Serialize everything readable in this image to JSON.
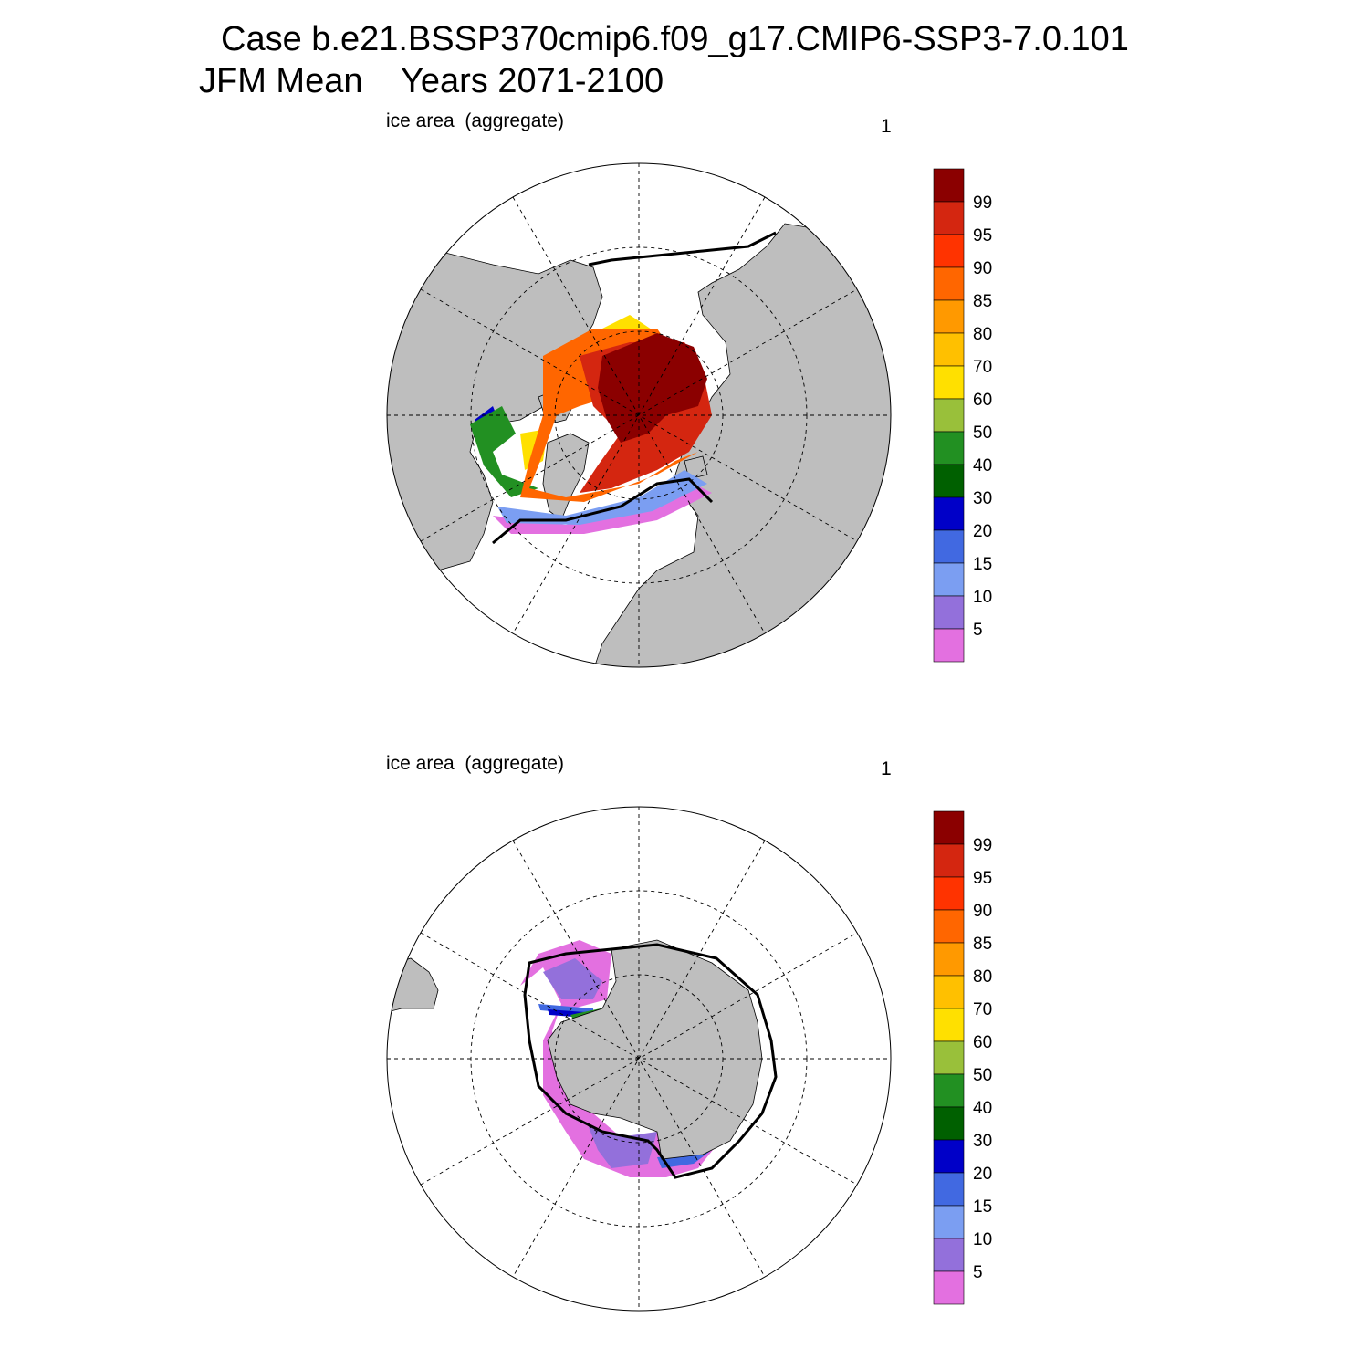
{
  "title": {
    "line1": "Case b.e21.BSSP370cmip6.f09_g17.CMIP6-SSP3-7.0.101",
    "line2": "JFM Mean    Years 2071-2100"
  },
  "panels": [
    {
      "id": "north",
      "left_label": "ice area  (aggregate)",
      "right_label": "1"
    },
    {
      "id": "south",
      "left_label": "ice area  (aggregate)",
      "right_label": "1"
    }
  ],
  "colorbar": {
    "labels": [
      "99",
      "95",
      "90",
      "85",
      "80",
      "70",
      "60",
      "50",
      "40",
      "30",
      "20",
      "15",
      "10",
      "5"
    ],
    "colors": [
      "#8b0000",
      "#d42610",
      "#ff3300",
      "#ff6600",
      "#ff9900",
      "#ffc000",
      "#ffe000",
      "#99c03a",
      "#229022",
      "#006000",
      "#0000c8",
      "#4169e1",
      "#7b9ef2",
      "#9370db",
      "#e370e0"
    ]
  },
  "map_colors": {
    "land": "#bebebe",
    "ocean": "#ffffff",
    "outline": "#000000"
  }
}
